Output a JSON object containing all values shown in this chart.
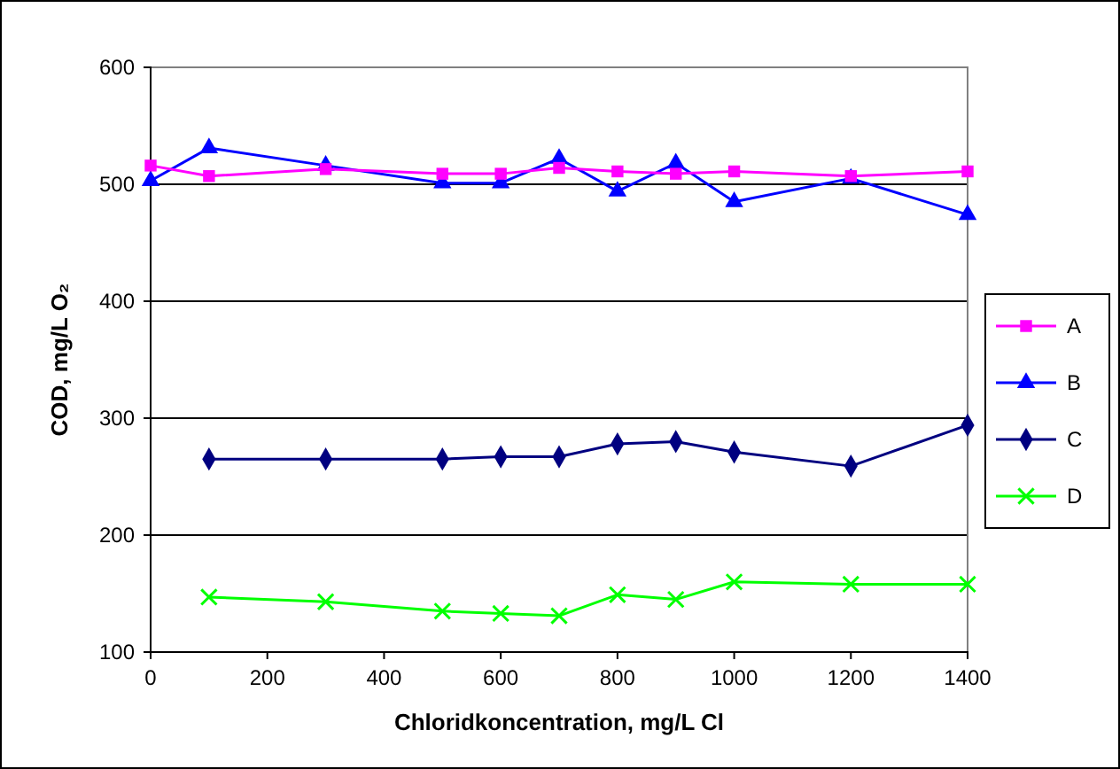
{
  "chart_data": {
    "type": "line",
    "xlabel": "Chloridkoncentration, mg/L Cl",
    "ylabel": "COD, mg/L O₂",
    "xlim": [
      0,
      1400
    ],
    "xticks": [
      0,
      200,
      400,
      600,
      800,
      1000,
      1200,
      1400
    ],
    "ylim": [
      100,
      600
    ],
    "yticks": [
      100,
      200,
      300,
      400,
      500,
      600
    ],
    "grid": "y",
    "legend": "right",
    "series": [
      {
        "name": "A",
        "color": "#ff00ff",
        "marker": "square",
        "x": [
          0,
          100,
          300,
          500,
          600,
          700,
          800,
          900,
          1000,
          1200,
          1400
        ],
        "values": [
          516,
          507,
          513,
          509,
          509,
          514,
          511,
          509,
          511,
          507,
          511
        ]
      },
      {
        "name": "B",
        "color": "#0000ff",
        "marker": "triangle",
        "x": [
          0,
          100,
          300,
          500,
          600,
          700,
          800,
          900,
          1000,
          1200,
          1400
        ],
        "values": [
          503,
          531,
          516,
          501,
          501,
          522,
          494,
          518,
          485,
          505,
          474
        ]
      },
      {
        "name": "C",
        "color": "#000080",
        "marker": "diamond",
        "x": [
          100,
          300,
          500,
          600,
          700,
          800,
          900,
          1000,
          1200,
          1400
        ],
        "values": [
          265,
          265,
          265,
          267,
          267,
          278,
          280,
          271,
          259,
          294
        ]
      },
      {
        "name": "D",
        "color": "#00ff00",
        "marker": "cross",
        "x": [
          100,
          300,
          500,
          600,
          700,
          800,
          900,
          1000,
          1200,
          1400
        ],
        "values": [
          147,
          143,
          135,
          133,
          131,
          149,
          145,
          160,
          158,
          158
        ]
      }
    ]
  }
}
